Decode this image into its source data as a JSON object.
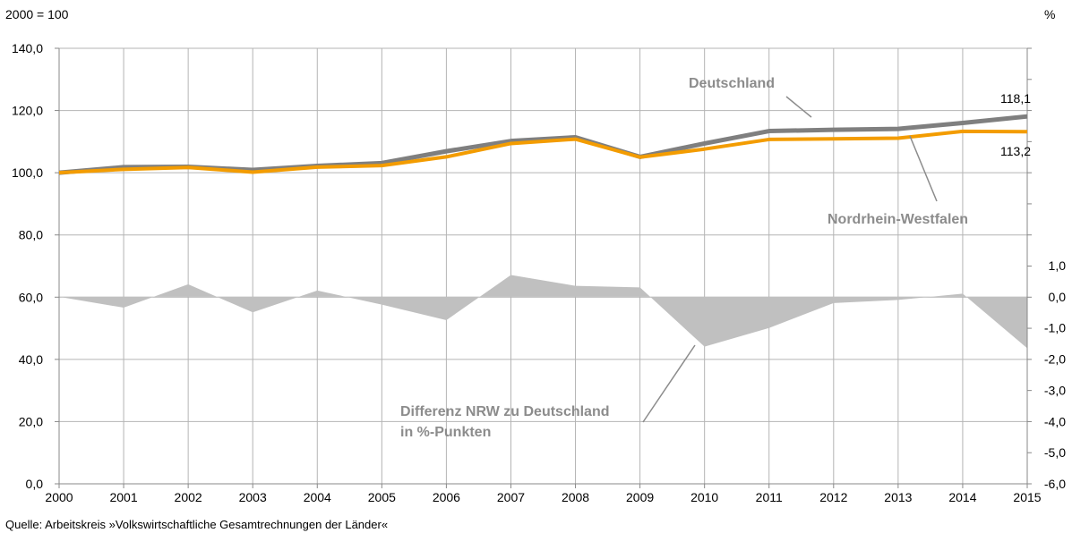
{
  "chart_data": {
    "type": "line",
    "left_unit_label": "2000 = 100",
    "right_unit_label": "%",
    "x": [
      "2000",
      "2001",
      "2002",
      "2003",
      "2004",
      "2005",
      "2006",
      "2007",
      "2008",
      "2009",
      "2010",
      "2011",
      "2012",
      "2013",
      "2014",
      "2015"
    ],
    "y_left": {
      "range": [
        0,
        140
      ],
      "ticks": [
        0,
        20,
        40,
        60,
        80,
        100,
        120,
        140
      ],
      "tick_labels": [
        "0,0",
        "20,0",
        "40,0",
        "60,0",
        "80,0",
        "100,0",
        "120,0",
        "140,0"
      ]
    },
    "y_right": {
      "range": [
        -6,
        1
      ],
      "ticks": [
        -6,
        -5,
        -4,
        -3,
        -2,
        -1,
        0,
        1
      ],
      "tick_labels": [
        "-6,0",
        "-5,0",
        "-4,0",
        "-3,0",
        "-2,0",
        "-1,0",
        "0,0",
        "1,0"
      ]
    },
    "grid": true,
    "series": [
      {
        "name": "Deutschland",
        "axis": "left",
        "color": "#7f7f7f",
        "values": [
          100.0,
          101.8,
          101.9,
          100.9,
          102.2,
          103.1,
          106.9,
          110.2,
          111.4,
          105.1,
          109.4,
          113.4,
          113.8,
          114.1,
          116.0,
          118.1
        ]
      },
      {
        "name": "Nordrhein-Westfalen",
        "axis": "left",
        "color": "#f39c00",
        "values": [
          100.0,
          101.1,
          101.7,
          100.2,
          101.8,
          102.3,
          105.1,
          109.4,
          110.8,
          105.0,
          107.6,
          110.7,
          110.9,
          111.1,
          113.3,
          113.2
        ]
      },
      {
        "name": "Differenz NRW zu Deutschland in %-Punkten",
        "type": "area",
        "axis": "right",
        "color": "#c0c0c0",
        "values": [
          0.0,
          -0.35,
          0.4,
          -0.5,
          0.2,
          -0.25,
          -0.75,
          0.7,
          0.35,
          0.3,
          -1.6,
          -1.0,
          -0.2,
          -0.1,
          0.1,
          -1.65
        ]
      }
    ],
    "annotations": [
      {
        "id": "de",
        "text": "Deutschland"
      },
      {
        "id": "nrw",
        "text": "Nordrhein-Westfalen"
      },
      {
        "id": "diff1",
        "text": "Differenz NRW zu Deutschland"
      },
      {
        "id": "diff2",
        "text": "in %-Punkten"
      }
    ],
    "end_labels": {
      "de": "118,1",
      "nrw": "113,2"
    },
    "source": "Quelle: Arbeitskreis »Volkswirtschaftliche Gesamtrechnungen der Länder«"
  }
}
